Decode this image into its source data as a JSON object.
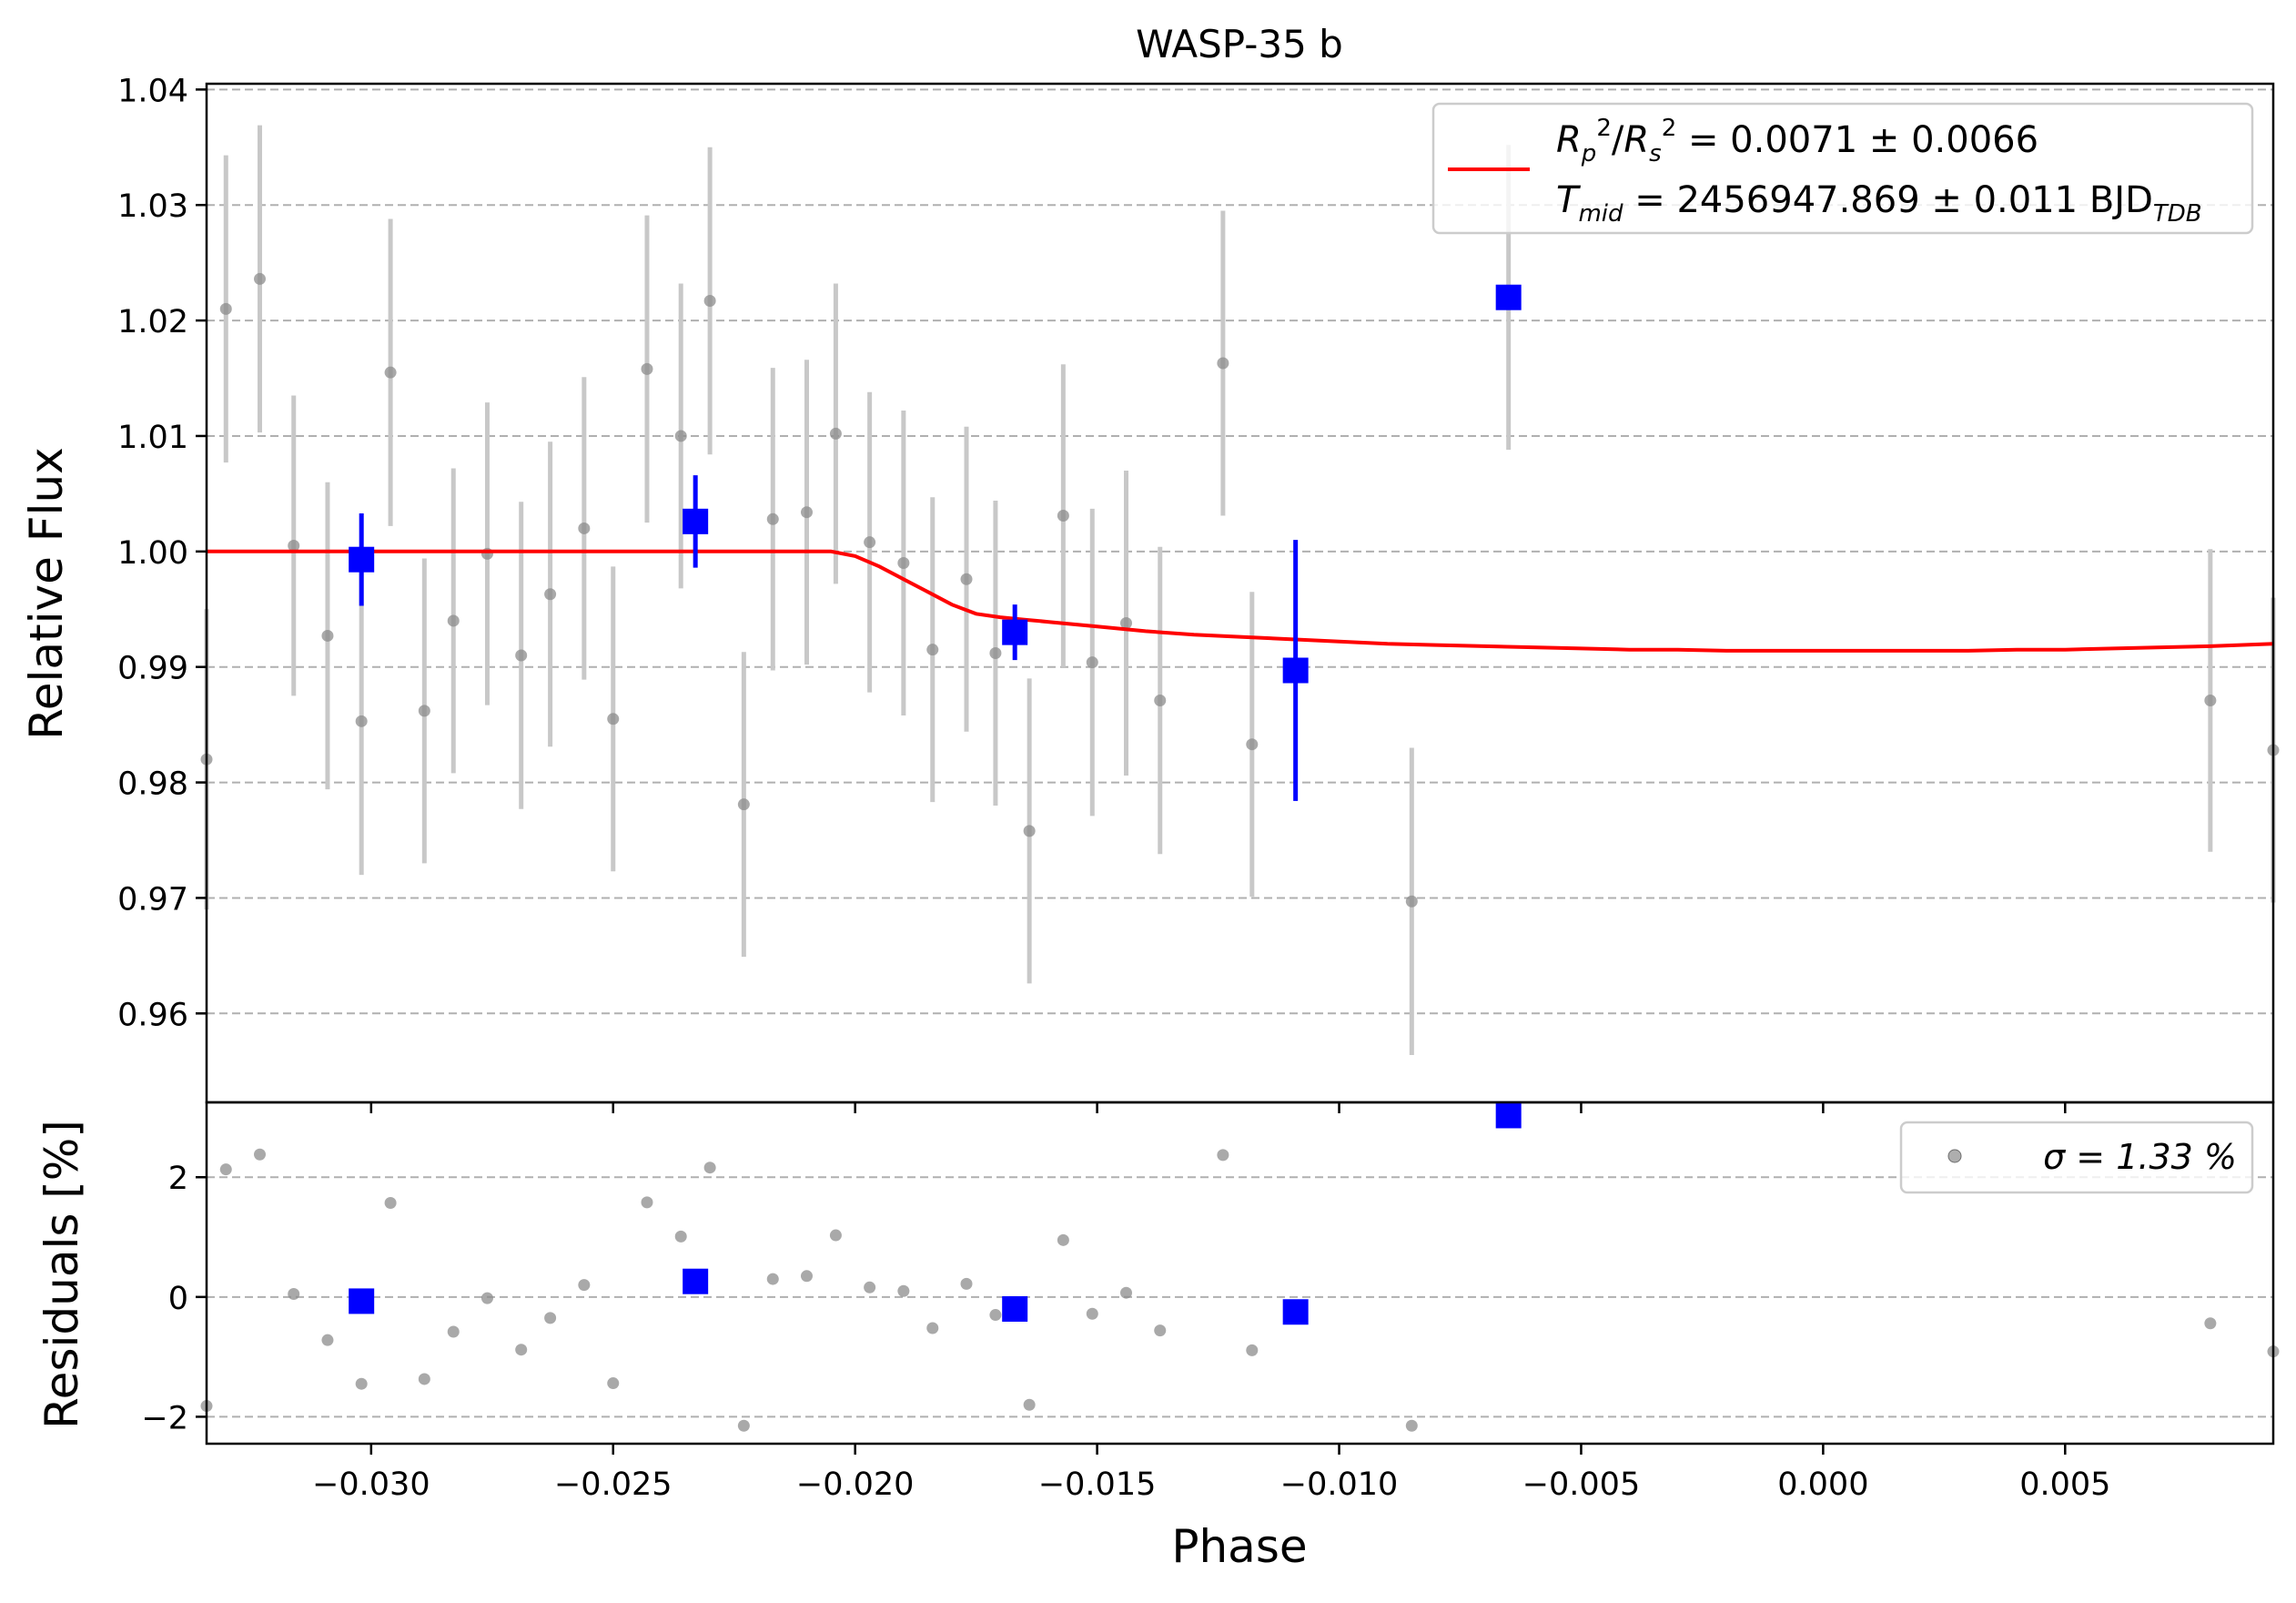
{
  "chart_data": [
    {
      "panel": "top",
      "type": "scatter",
      "title": "WASP-35 b",
      "xlabel": "",
      "ylabel": "Relative Flux",
      "xlim": [
        -0.0334,
        0.0093
      ],
      "ylim": [
        0.9523,
        1.0405
      ],
      "x_ticks": [
        -0.03,
        -0.025,
        -0.02,
        -0.015,
        -0.01,
        -0.005,
        0.0,
        0.005
      ],
      "y_ticks": [
        0.96,
        0.97,
        0.98,
        0.99,
        1.0,
        1.01,
        1.02,
        1.03,
        1.04
      ],
      "y_tick_labels": [
        "0.96",
        "0.97",
        "0.98",
        "0.99",
        "1.00",
        "1.01",
        "1.02",
        "1.03",
        "1.04"
      ],
      "grid": "horizontal dashed",
      "legend_position": "upper-right",
      "legend": {
        "line1": "R_p²/R_s² = 0.0071 ± 0.0066",
        "line2": "T_mid = 2456947.869 ± 0.011 BJD_TDB"
      },
      "colors": {
        "raw": "#8c8c8c",
        "raw_err": "#c8c8c8",
        "binned": "#0000ff",
        "model": "#ff0000"
      },
      "series": [
        {
          "kind": "raw",
          "x": [
            -0.0334,
            -0.033,
            -0.0323,
            -0.0316,
            -0.0309,
            -0.0302,
            -0.0296,
            -0.0289,
            -0.0283,
            -0.0276,
            -0.0269,
            -0.0263,
            -0.0256,
            -0.025,
            -0.0243,
            -0.0236,
            -0.023,
            -0.0223,
            -0.0217,
            -0.021,
            -0.0204,
            -0.0197,
            -0.019,
            -0.0184,
            -0.0177,
            -0.0171,
            -0.0164,
            -0.0157,
            -0.0151,
            -0.0144,
            -0.0137,
            -0.0124,
            -0.0118,
            -0.0085,
            -0.0065,
            0.008,
            0.0093
          ],
          "y": [
            0.982,
            1.021,
            1.0236,
            1.0005,
            0.9927,
            0.9853,
            1.0155,
            0.9862,
            0.994,
            0.9998,
            0.991,
            0.9963,
            1.002,
            0.9855,
            1.0158,
            1.01,
            1.0217,
            0.9781,
            1.0028,
            1.0034,
            1.0102,
            1.0008,
            0.999,
            0.9915,
            0.9976,
            0.9912,
            0.9758,
            1.0031,
            0.9904,
            0.9938,
            0.9871,
            1.0163,
            0.9833,
            0.9697,
            1.022,
            0.9871,
            0.9828
          ],
          "yerr": [
            0.013,
            0.0133,
            0.0133,
            0.013,
            0.0133,
            0.0133,
            0.0133,
            0.0132,
            0.0132,
            0.0131,
            0.0133,
            0.0132,
            0.0131,
            0.0132,
            0.0133,
            0.0132,
            0.0133,
            0.0132,
            0.0131,
            0.0132,
            0.013,
            0.013,
            0.0132,
            0.0132,
            0.0132,
            0.0132,
            0.0132,
            0.0131,
            0.0133,
            0.0132,
            0.0133,
            0.0132,
            0.0132,
            0.0133,
            0.0132,
            0.0131,
            0.0132
          ]
        },
        {
          "kind": "binned",
          "x": [
            -0.0302,
            -0.0233,
            -0.0167,
            -0.0109,
            -0.0065
          ],
          "y": [
            0.9993,
            1.0026,
            0.993,
            0.9897,
            1.022
          ],
          "yerr": [
            0.004,
            0.004,
            0.0024,
            0.0113,
            0.0
          ]
        },
        {
          "kind": "model",
          "x": [
            -0.0334,
            -0.0205,
            -0.02,
            -0.0195,
            -0.019,
            -0.0185,
            -0.018,
            -0.0175,
            -0.017,
            -0.0165,
            -0.016,
            -0.015,
            -0.014,
            -0.013,
            -0.012,
            -0.011,
            -0.01,
            -0.009,
            -0.008,
            -0.007,
            -0.006,
            -0.005,
            -0.004,
            -0.003,
            -0.002,
            -0.001,
            0.0,
            0.001,
            0.002,
            0.003,
            0.004,
            0.005,
            0.006,
            0.007,
            0.008,
            0.0093
          ],
          "y": [
            1.0,
            1.0,
            0.9996,
            0.9987,
            0.9976,
            0.9965,
            0.9954,
            0.9946,
            0.9943,
            0.9941,
            0.9939,
            0.9935,
            0.9931,
            0.9928,
            0.9926,
            0.9924,
            0.9922,
            0.992,
            0.9919,
            0.9918,
            0.9917,
            0.9916,
            0.9915,
            0.9915,
            0.9914,
            0.9914,
            0.9914,
            0.9914,
            0.9914,
            0.9914,
            0.9915,
            0.9915,
            0.9916,
            0.9917,
            0.9918,
            0.992
          ]
        }
      ]
    },
    {
      "panel": "bottom",
      "type": "scatter",
      "title": "",
      "xlabel": "Phase",
      "ylabel": "Residuals [%]",
      "xlim": [
        -0.0334,
        0.0093
      ],
      "ylim": [
        -2.45,
        3.25
      ],
      "x_ticks": [
        -0.03,
        -0.025,
        -0.02,
        -0.015,
        -0.01,
        -0.005,
        0.0,
        0.005
      ],
      "x_tick_labels": [
        "−0.030",
        "−0.025",
        "−0.020",
        "−0.015",
        "−0.010",
        "−0.005",
        "0.000",
        "0.005"
      ],
      "y_ticks": [
        -2,
        0,
        2
      ],
      "y_tick_labels": [
        "−2",
        "0",
        "2"
      ],
      "grid": "horizontal dashed",
      "legend_position": "upper-right",
      "legend": {
        "sigma": "σ = 1.33 %"
      },
      "series": [
        {
          "kind": "raw",
          "x": [
            -0.0334,
            -0.033,
            -0.0323,
            -0.0316,
            -0.0309,
            -0.0302,
            -0.0296,
            -0.0289,
            -0.0283,
            -0.0276,
            -0.0269,
            -0.0263,
            -0.0256,
            -0.025,
            -0.0243,
            -0.0236,
            -0.023,
            -0.0223,
            -0.0217,
            -0.021,
            -0.0204,
            -0.0197,
            -0.019,
            -0.0184,
            -0.0177,
            -0.0171,
            -0.0164,
            -0.0157,
            -0.0151,
            -0.0144,
            -0.0137,
            -0.0124,
            -0.0118,
            -0.0085,
            0.008,
            0.0093
          ],
          "y": [
            -1.82,
            2.13,
            2.38,
            0.05,
            -0.72,
            -1.45,
            1.57,
            -1.37,
            -0.58,
            -0.02,
            -0.88,
            -0.35,
            0.2,
            -1.44,
            1.58,
            1.01,
            2.16,
            -2.15,
            0.3,
            0.35,
            1.03,
            0.16,
            0.1,
            -0.52,
            0.22,
            -0.3,
            -1.8,
            0.95,
            -0.28,
            0.07,
            -0.56,
            2.37,
            -0.89,
            -2.15,
            -0.44,
            -0.91
          ]
        },
        {
          "kind": "binned",
          "x": [
            -0.0302,
            -0.0233,
            -0.0167,
            -0.0109,
            -0.0065
          ],
          "y": [
            -0.07,
            0.26,
            -0.2,
            -0.25,
            3.03
          ]
        }
      ]
    }
  ]
}
